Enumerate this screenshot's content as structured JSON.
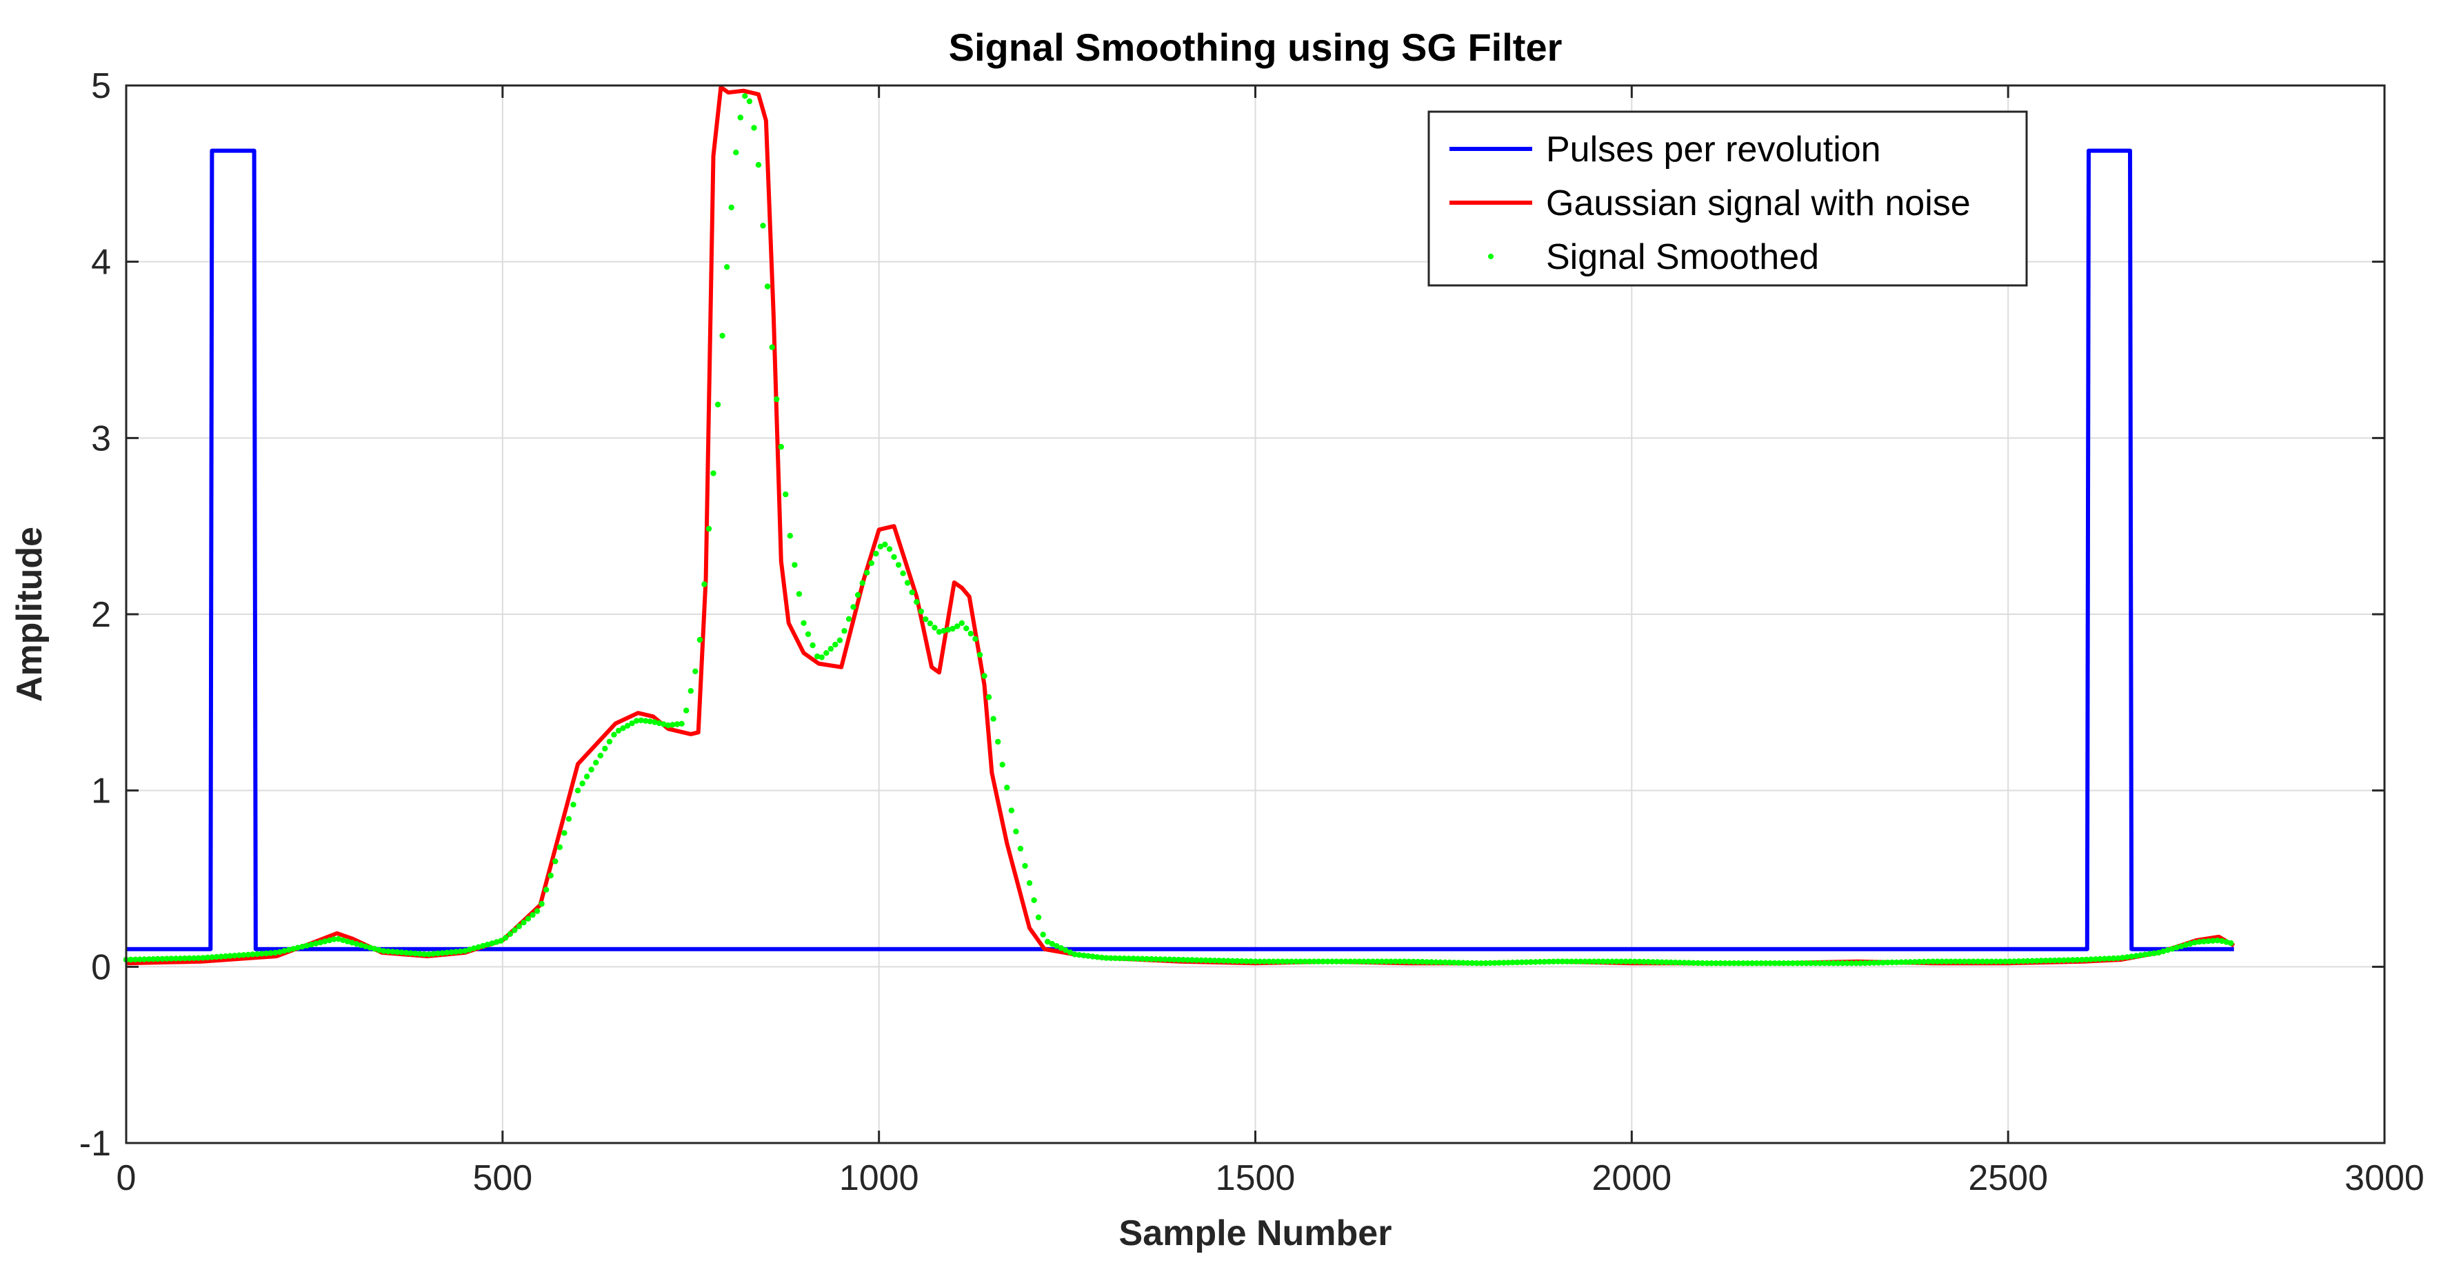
{
  "chart_data": {
    "type": "line",
    "title": "Signal Smoothing using SG Filter",
    "xlabel": "Sample Number",
    "ylabel": "Amplitude",
    "xlim": [
      0,
      3000
    ],
    "ylim": [
      -1,
      5
    ],
    "xticks": [
      0,
      500,
      1000,
      1500,
      2000,
      2500,
      3000
    ],
    "xtick_labels": [
      "0",
      "500",
      "1000",
      "1500",
      "2000",
      "2500",
      "3000"
    ],
    "yticks": [
      -1,
      0,
      1,
      2,
      3,
      4,
      5
    ],
    "ytick_labels": [
      "-1",
      "0",
      "1",
      "2",
      "3",
      "4",
      "5"
    ],
    "grid": true,
    "legend_position": "top-right",
    "series": [
      {
        "name": "Pulses per revolution",
        "color": "#0000ff",
        "style": "line",
        "x": [
          0,
          112,
          114,
          170,
          172,
          2605,
          2607,
          2662,
          2664,
          2800
        ],
        "y": [
          0.1,
          0.1,
          4.63,
          4.63,
          0.1,
          0.1,
          4.63,
          4.63,
          0.1,
          0.1
        ]
      },
      {
        "name": "Gaussian signal with noise",
        "color": "#ff0000",
        "style": "line",
        "x": [
          0,
          100,
          200,
          250,
          280,
          300,
          340,
          400,
          450,
          500,
          550,
          600,
          650,
          680,
          700,
          720,
          750,
          760,
          770,
          780,
          790,
          800,
          820,
          840,
          850,
          860,
          870,
          880,
          900,
          920,
          950,
          980,
          1000,
          1020,
          1050,
          1070,
          1080,
          1100,
          1110,
          1120,
          1140,
          1150,
          1170,
          1200,
          1220,
          1260,
          1300,
          1400,
          1500,
          1600,
          1700,
          1800,
          1900,
          2000,
          2100,
          2200,
          2300,
          2400,
          2500,
          2600,
          2650,
          2700,
          2750,
          2780,
          2800
        ],
        "y": [
          0.02,
          0.03,
          0.06,
          0.14,
          0.19,
          0.16,
          0.08,
          0.06,
          0.08,
          0.15,
          0.35,
          1.15,
          1.38,
          1.44,
          1.42,
          1.35,
          1.32,
          1.33,
          2.2,
          4.6,
          4.99,
          4.96,
          4.97,
          4.95,
          4.8,
          3.7,
          2.3,
          1.95,
          1.78,
          1.72,
          1.7,
          2.2,
          2.48,
          2.5,
          2.1,
          1.7,
          1.67,
          2.18,
          2.15,
          2.1,
          1.6,
          1.1,
          0.7,
          0.22,
          0.1,
          0.07,
          0.05,
          0.03,
          0.02,
          0.03,
          0.02,
          0.02,
          0.03,
          0.02,
          0.02,
          0.02,
          0.03,
          0.02,
          0.02,
          0.03,
          0.04,
          0.08,
          0.15,
          0.17,
          0.12
        ]
      },
      {
        "name": "Signal Smoothed",
        "color": "#00ff00",
        "style": "dots",
        "x": [
          0,
          100,
          200,
          280,
          340,
          400,
          450,
          500,
          550,
          600,
          650,
          680,
          700,
          720,
          740,
          760,
          780,
          800,
          810,
          820,
          830,
          840,
          860,
          880,
          900,
          920,
          950,
          980,
          1000,
          1010,
          1030,
          1060,
          1080,
          1100,
          1110,
          1130,
          1150,
          1180,
          1220,
          1260,
          1300,
          1400,
          1500,
          1600,
          1700,
          1800,
          1900,
          2000,
          2100,
          2200,
          2300,
          2400,
          2500,
          2600,
          2650,
          2700,
          2750,
          2780,
          2800
        ],
        "y": [
          0.04,
          0.05,
          0.08,
          0.16,
          0.09,
          0.07,
          0.09,
          0.15,
          0.33,
          1.0,
          1.33,
          1.4,
          1.39,
          1.37,
          1.38,
          1.75,
          2.8,
          4.1,
          4.62,
          4.95,
          4.9,
          4.55,
          3.4,
          2.5,
          1.95,
          1.74,
          1.86,
          2.2,
          2.38,
          2.4,
          2.25,
          1.98,
          1.9,
          1.92,
          1.95,
          1.85,
          1.45,
          0.8,
          0.15,
          0.07,
          0.05,
          0.04,
          0.03,
          0.03,
          0.03,
          0.02,
          0.03,
          0.03,
          0.02,
          0.02,
          0.02,
          0.03,
          0.03,
          0.04,
          0.05,
          0.08,
          0.14,
          0.15,
          0.13
        ]
      }
    ]
  }
}
